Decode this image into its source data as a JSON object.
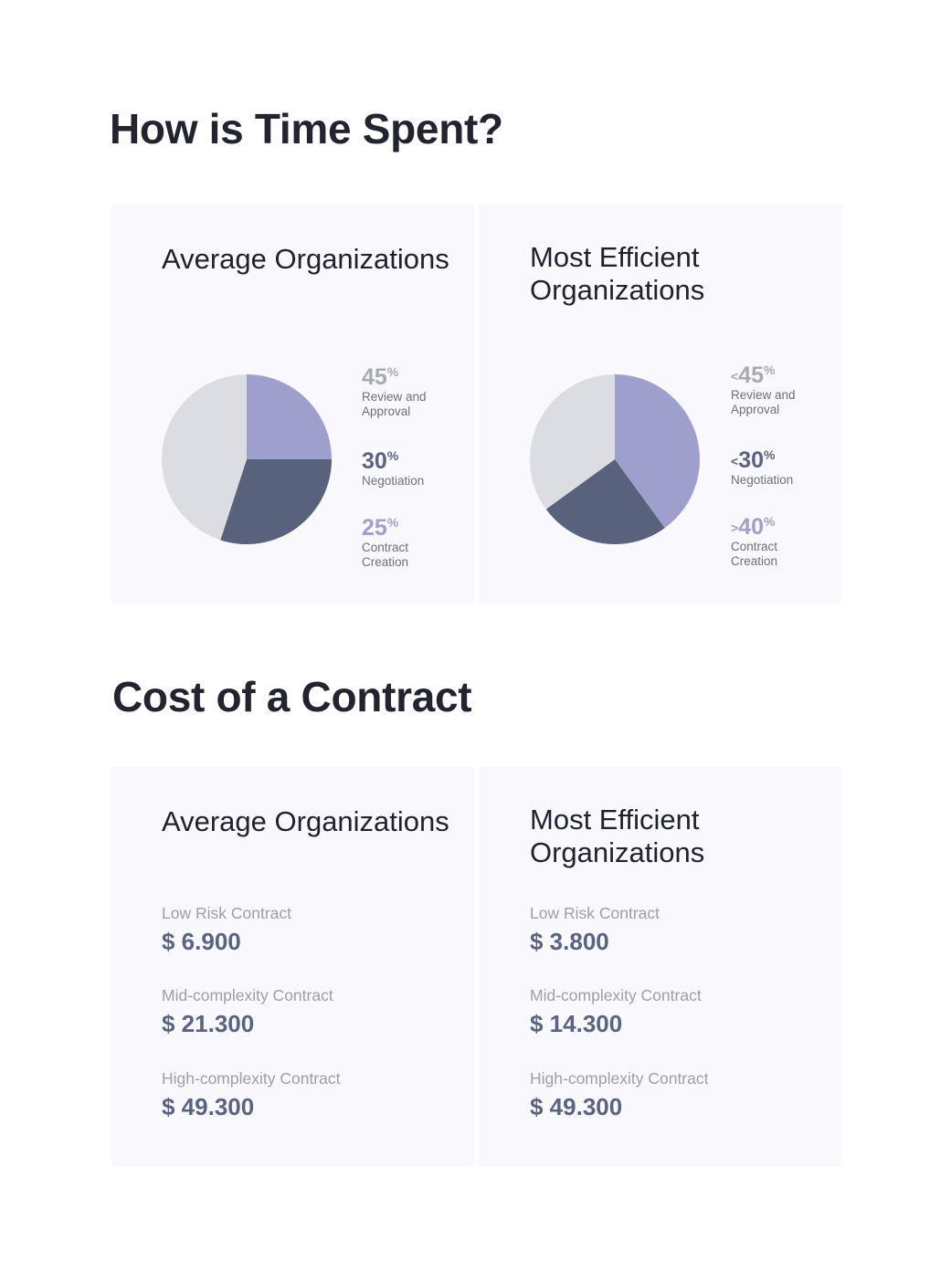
{
  "time_section": {
    "title": "How is Time Spent?",
    "panels": [
      {
        "heading": "Average Organizations",
        "legend": [
          {
            "prefix": "",
            "value": "45",
            "unit": "%",
            "label": "Review and Approval",
            "color": "#a7a9b3"
          },
          {
            "prefix": "",
            "value": "30",
            "unit": "%",
            "label": "Negotiation",
            "color": "#5a6481"
          },
          {
            "prefix": "",
            "value": "25",
            "unit": "%",
            "label": "Contract Creation",
            "color": "#a0a0cc"
          }
        ]
      },
      {
        "heading": "Most Efficient Organizations",
        "legend": [
          {
            "prefix": "<",
            "value": "45",
            "unit": "%",
            "label": "Review and Approval",
            "color": "#a7a9b3"
          },
          {
            "prefix": "<",
            "value": "30",
            "unit": "%",
            "label": "Negotiation",
            "color": "#5a6481"
          },
          {
            "prefix": ">",
            "value": "40",
            "unit": "%",
            "label": "Contract Creation",
            "color": "#a0a0cc"
          }
        ]
      }
    ]
  },
  "cost_section": {
    "title": "Cost of a Contract",
    "panels": [
      {
        "heading": "Average Organizations",
        "items": [
          {
            "label": "Low Risk Contract",
            "value": "$ 6.900"
          },
          {
            "label": "Mid-complexity Contract",
            "value": "$ 21.300"
          },
          {
            "label": "High-complexity Contract",
            "value": "$ 49.300"
          }
        ]
      },
      {
        "heading": "Most Efficient Organizations",
        "items": [
          {
            "label": "Low Risk Contract",
            "value": "$ 3.800"
          },
          {
            "label": "Mid-complexity Contract",
            "value": "$ 14.300"
          },
          {
            "label": "High-complexity Contract",
            "value": "$ 49.300"
          }
        ]
      }
    ]
  },
  "colors": {
    "review": "#dcdce3",
    "negotiation": "#58627c",
    "creation": "#9e9fcc",
    "panel_bg": "#f9f9fd"
  },
  "chart_data": [
    {
      "type": "pie",
      "title": "Average Organizations",
      "categories": [
        "Review and Approval",
        "Negotiation",
        "Contract Creation"
      ],
      "values": [
        45,
        30,
        25
      ],
      "colors": [
        "#dcdce3",
        "#58627c",
        "#9e9fcc"
      ]
    },
    {
      "type": "pie",
      "title": "Most Efficient Organizations",
      "categories": [
        "Review and Approval",
        "Negotiation",
        "Contract Creation"
      ],
      "values": [
        35,
        25,
        40
      ],
      "colors": [
        "#dcdce3",
        "#58627c",
        "#9e9fcc"
      ]
    }
  ]
}
